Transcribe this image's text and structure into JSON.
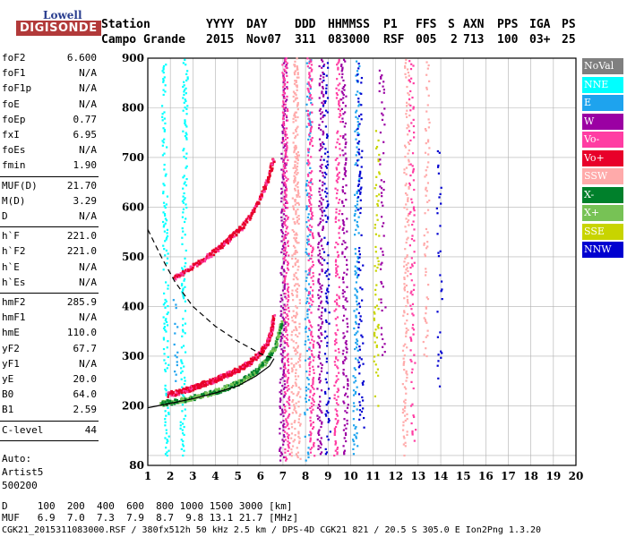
{
  "logo": {
    "top": "Lowell",
    "main": "DIGISONDE"
  },
  "header": {
    "row1": {
      "station": "Station",
      "yyyy": "YYYY",
      "day": "DAY",
      "ddd": "DDD",
      "hhmmss": "HHMMSS",
      "p1": "P1",
      "ffs": "FFS",
      "s": "S",
      "axn": "AXN",
      "pps": "PPS",
      "iga": "IGA",
      "ps": "PS"
    },
    "row2": {
      "station": "Campo Grande",
      "yyyy": "2015",
      "day": "Nov07",
      "ddd": "311",
      "hhmmss": "083000",
      "p1": "RSF",
      "ffs": "005",
      "s": "2",
      "axn": "713",
      "pps": "100",
      "iga": "03+",
      "ps": "25"
    }
  },
  "params": {
    "group1": [
      {
        "label": "foF2",
        "value": "6.600"
      },
      {
        "label": "foF1",
        "value": "N/A"
      },
      {
        "label": "foF1p",
        "value": "N/A"
      },
      {
        "label": "foE",
        "value": "N/A"
      },
      {
        "label": "foEp",
        "value": "0.77"
      },
      {
        "label": "fxI",
        "value": "6.95"
      },
      {
        "label": "foEs",
        "value": "N/A"
      },
      {
        "label": "fmin",
        "value": "1.90"
      }
    ],
    "group2": [
      {
        "label": "MUF(D)",
        "value": "21.70"
      },
      {
        "label": "M(D)",
        "value": "3.29"
      },
      {
        "label": "D",
        "value": "N/A"
      }
    ],
    "group3": [
      {
        "label": "h`F",
        "value": "221.0"
      },
      {
        "label": "h`F2",
        "value": "221.0"
      },
      {
        "label": "h`E",
        "value": "N/A"
      },
      {
        "label": "h`Es",
        "value": "N/A"
      }
    ],
    "group4": [
      {
        "label": "hmF2",
        "value": "285.9"
      },
      {
        "label": "hmF1",
        "value": "N/A"
      },
      {
        "label": "hmE",
        "value": "110.0"
      },
      {
        "label": "yF2",
        "value": "67.7"
      },
      {
        "label": "yF1",
        "value": "N/A"
      },
      {
        "label": "yE",
        "value": "20.0"
      },
      {
        "label": "B0",
        "value": "64.0"
      },
      {
        "label": "B1",
        "value": "2.59"
      }
    ],
    "group5": [
      {
        "label": "C-level",
        "value": "44"
      }
    ],
    "auto": [
      "Auto:",
      "Artist5",
      "500200"
    ]
  },
  "legend": [
    {
      "label": "NoVal",
      "color": "#7f7f7f"
    },
    {
      "label": "NNE",
      "color": "#00ffff"
    },
    {
      "label": "E",
      "color": "#1ea3ee"
    },
    {
      "label": "W",
      "color": "#9b00a3"
    },
    {
      "label": "Vo-",
      "color": "#ff3da3"
    },
    {
      "label": "Vo+",
      "color": "#e8002a"
    },
    {
      "label": "SSW",
      "color": "#ffaaaa"
    },
    {
      "label": "X-",
      "color": "#00802b"
    },
    {
      "label": "X+",
      "color": "#77c255"
    },
    {
      "label": "SSE",
      "color": "#c8d400"
    },
    {
      "label": "NNW",
      "color": "#0000d0"
    }
  ],
  "footer": {
    "d_row": "D     100  200  400  600  800 1000 1500 3000 [km]",
    "muf_row": "MUF   6.9  7.0  7.3  7.9  8.7  9.8 13.1 21.7 [MHz]",
    "file_row": "CGK21_2015311083000.RSF / 380fx512h 50 kHz 2.5 km / DPS-4D CGK21 821 / 20.5 S 305.0 E Ion2Png 1.3.20"
  },
  "chart_data": {
    "type": "scatter",
    "xlabel": "",
    "ylabel": "",
    "xlim": [
      1,
      20
    ],
    "ylim": [
      80,
      900
    ],
    "x_ticks": [
      1,
      2,
      3,
      4,
      5,
      6,
      7,
      8,
      9,
      10,
      11,
      12,
      13,
      14,
      15,
      16,
      17,
      18,
      19,
      20
    ],
    "y_ticks": [
      80,
      200,
      300,
      400,
      500,
      600,
      700,
      800,
      900
    ],
    "grid": true,
    "traces": [
      {
        "name": "o-trace F2",
        "color_key": "Vo+",
        "points": [
          [
            1.9,
            223
          ],
          [
            2.5,
            228
          ],
          [
            3.0,
            236
          ],
          [
            3.5,
            244
          ],
          [
            4.0,
            252
          ],
          [
            4.5,
            262
          ],
          [
            5.0,
            272
          ],
          [
            5.5,
            286
          ],
          [
            6.0,
            305
          ],
          [
            6.3,
            325
          ],
          [
            6.5,
            350
          ],
          [
            6.6,
            380
          ]
        ]
      },
      {
        "name": "x-trace F2",
        "color_key": "X+",
        "points": [
          [
            1.6,
            205
          ],
          [
            2.2,
            208
          ],
          [
            3.0,
            216
          ],
          [
            3.8,
            225
          ],
          [
            4.5,
            236
          ],
          [
            5.2,
            250
          ],
          [
            5.8,
            268
          ],
          [
            6.3,
            292
          ],
          [
            6.7,
            322
          ],
          [
            6.95,
            370
          ]
        ]
      },
      {
        "name": "multi-hop o",
        "color_key": "Vo+",
        "points": [
          [
            2.2,
            458
          ],
          [
            3.0,
            480
          ],
          [
            3.8,
            505
          ],
          [
            4.5,
            530
          ],
          [
            5.2,
            560
          ],
          [
            5.8,
            600
          ],
          [
            6.3,
            650
          ],
          [
            6.6,
            700
          ]
        ]
      }
    ],
    "profile_curve": [
      [
        1.0,
        196
      ],
      [
        2.0,
        205
      ],
      [
        3.0,
        214
      ],
      [
        4.0,
        226
      ],
      [
        5.0,
        240
      ],
      [
        5.8,
        260
      ],
      [
        6.4,
        280
      ],
      [
        6.6,
        295
      ]
    ],
    "dashed_curve": [
      [
        1.0,
        555
      ],
      [
        1.6,
        500
      ],
      [
        2.2,
        450
      ],
      [
        3.0,
        400
      ],
      [
        4.0,
        360
      ],
      [
        5.0,
        330
      ],
      [
        6.0,
        305
      ],
      [
        6.6,
        295
      ]
    ]
  }
}
